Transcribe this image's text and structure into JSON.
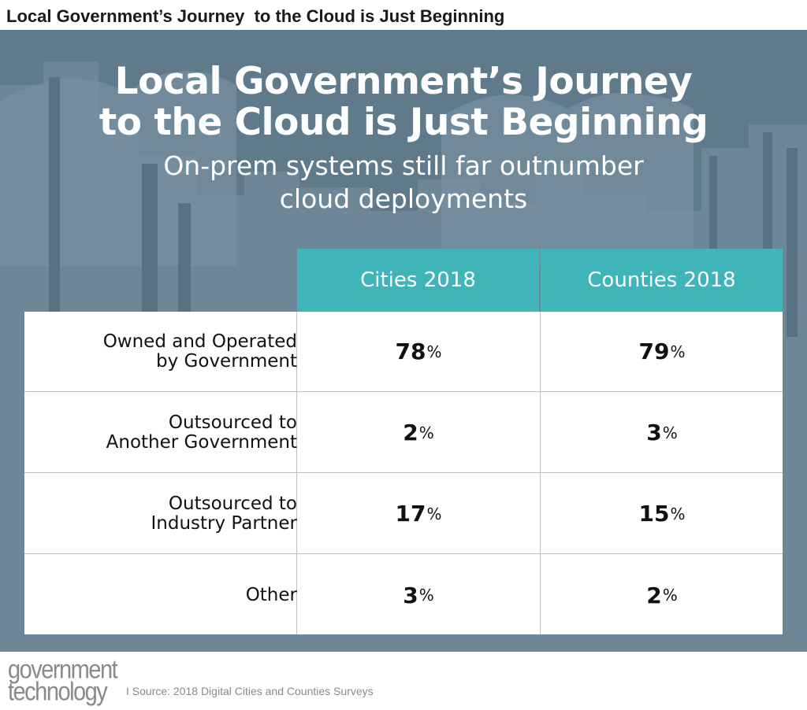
{
  "top_title": "Local Government’s Journey  to the Cloud is Just Beginning",
  "headline": {
    "line1": "Local Government’s Journey",
    "line2": "to the Cloud is Just Beginning"
  },
  "subhead": {
    "line1": "On-prem systems still far outnumber",
    "line2": "cloud deployments"
  },
  "colors": {
    "panel_bg": "#5f7a8a",
    "header_teal": "#3fb5b9",
    "text_dark": "#111111"
  },
  "chart_data": {
    "type": "table",
    "columns": [
      "Cities 2018",
      "Counties 2018"
    ],
    "rows": [
      {
        "label": "Owned and Operated\nby Government",
        "values": [
          "78",
          "79"
        ]
      },
      {
        "label": "Outsourced to\nAnother Government",
        "values": [
          "2",
          "3"
        ]
      },
      {
        "label": "Outsourced to\nIndustry Partner",
        "values": [
          "17",
          "15"
        ]
      },
      {
        "label": "Other",
        "values": [
          "3",
          "2"
        ]
      }
    ],
    "unit": "%"
  },
  "footer": {
    "logo_line1": "government",
    "logo_line2": "technology",
    "source": "I Source: 2018 Digital Cities and Counties Surveys"
  }
}
